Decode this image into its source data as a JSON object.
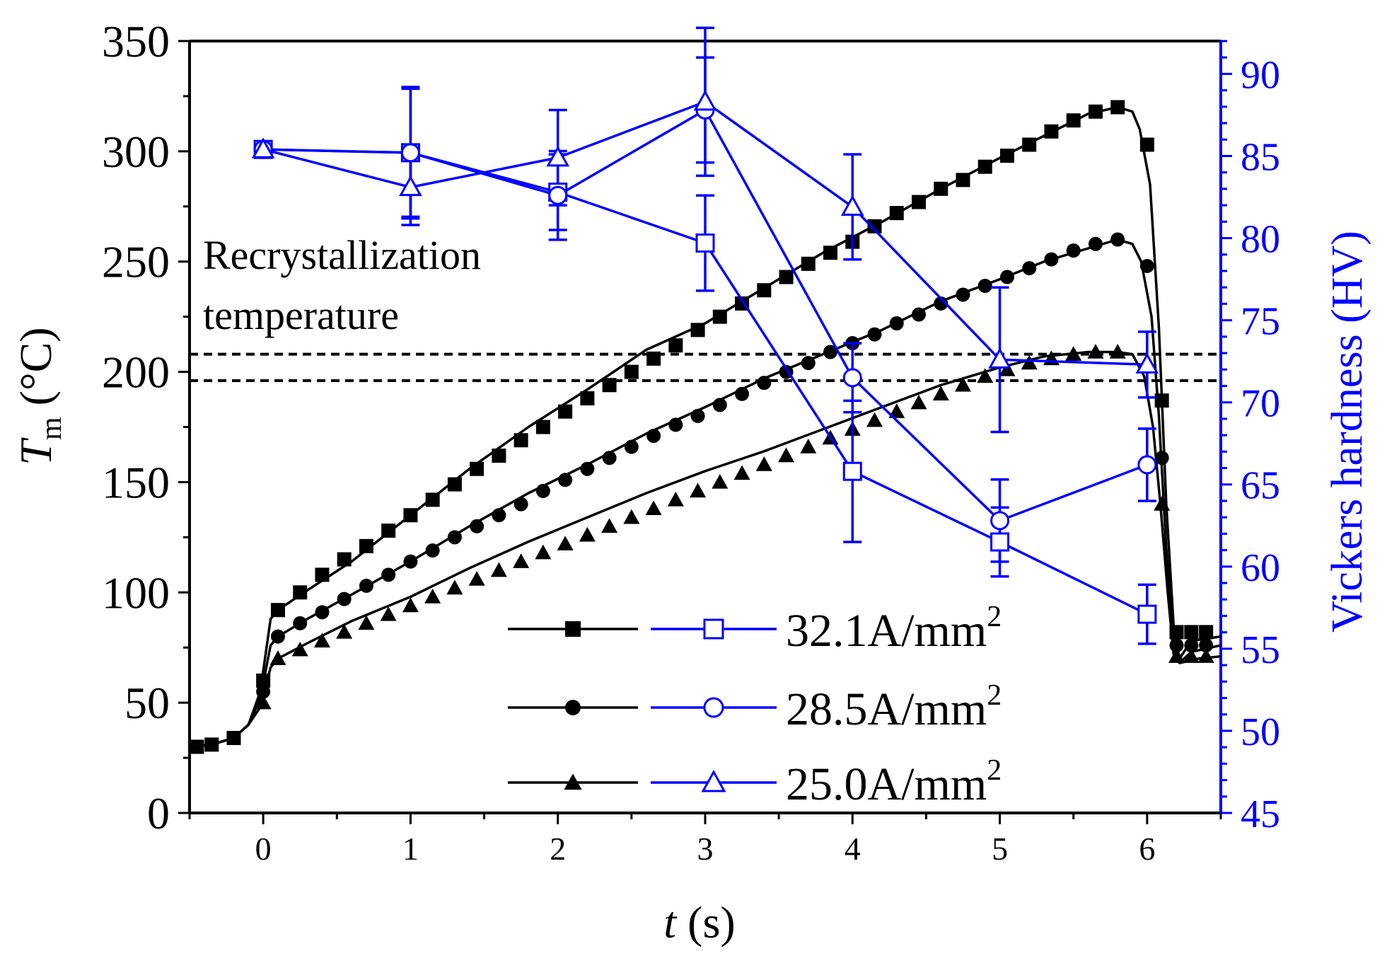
{
  "colors": {
    "temp": "#000000",
    "hard": "#0000ff",
    "threshold": "#000000"
  },
  "chart_data": {
    "type": "line",
    "x_axis": {
      "label_italic": "t",
      "label_unit": "(s)",
      "range": [
        -0.5,
        6.5
      ],
      "ticks": [
        0,
        1,
        2,
        3,
        4,
        5,
        6
      ]
    },
    "y_left": {
      "label_italic": "T",
      "label_sub": "m",
      "label_unit": "(°C)",
      "range": [
        0,
        350
      ],
      "ticks": [
        0,
        50,
        100,
        150,
        200,
        250,
        300,
        350
      ]
    },
    "y_right": {
      "label": "Vickers hardness (HV)",
      "range": [
        45,
        92
      ],
      "ticks": [
        45,
        50,
        55,
        60,
        65,
        70,
        75,
        80,
        85,
        90
      ]
    },
    "annotation": {
      "line1": "Recrystallization",
      "line2": "temperature"
    },
    "threshold_lines": [
      208,
      196
    ],
    "temperature_series": [
      {
        "name": "32.1A/mm2",
        "marker": "square",
        "curve": [
          [
            -0.5,
            30
          ],
          [
            -0.35,
            31
          ],
          [
            -0.2,
            34
          ],
          [
            -0.1,
            40
          ],
          [
            -0.02,
            55
          ],
          [
            0.05,
            88
          ],
          [
            0.1,
            92
          ],
          [
            0.3,
            101
          ],
          [
            0.6,
            114
          ],
          [
            1,
            135
          ],
          [
            1.4,
            156
          ],
          [
            1.8,
            175
          ],
          [
            2.2,
            192
          ],
          [
            2.6,
            210
          ],
          [
            3,
            222
          ],
          [
            3.4,
            238
          ],
          [
            3.8,
            254
          ],
          [
            4.2,
            268
          ],
          [
            4.6,
            283
          ],
          [
            5,
            297
          ],
          [
            5.3,
            307
          ],
          [
            5.6,
            317
          ],
          [
            5.8,
            320
          ],
          [
            5.9,
            318
          ],
          [
            5.95,
            310
          ],
          [
            6.02,
            285
          ],
          [
            6.08,
            220
          ],
          [
            6.13,
            140
          ],
          [
            6.18,
            85
          ],
          [
            6.22,
            70
          ],
          [
            6.3,
            78
          ],
          [
            6.5,
            80
          ]
        ],
        "markers": [
          [
            -0.45,
            30
          ],
          [
            -0.35,
            31
          ],
          [
            -0.2,
            34
          ],
          [
            0.0,
            60
          ],
          [
            0.1,
            92
          ],
          [
            0.25,
            100
          ],
          [
            0.4,
            108
          ],
          [
            0.55,
            115
          ],
          [
            0.7,
            121
          ],
          [
            0.85,
            128
          ],
          [
            1.0,
            135
          ],
          [
            1.15,
            142
          ],
          [
            1.3,
            149
          ],
          [
            1.45,
            156
          ],
          [
            1.6,
            162
          ],
          [
            1.75,
            169
          ],
          [
            1.9,
            175
          ],
          [
            2.05,
            182
          ],
          [
            2.2,
            188
          ],
          [
            2.35,
            194
          ],
          [
            2.5,
            200
          ],
          [
            2.65,
            206
          ],
          [
            2.8,
            212
          ],
          [
            2.95,
            219
          ],
          [
            3.1,
            225
          ],
          [
            3.25,
            231
          ],
          [
            3.4,
            237
          ],
          [
            3.55,
            243
          ],
          [
            3.7,
            249
          ],
          [
            3.85,
            254
          ],
          [
            4.0,
            259
          ],
          [
            4.15,
            266
          ],
          [
            4.3,
            272
          ],
          [
            4.45,
            277
          ],
          [
            4.6,
            283
          ],
          [
            4.75,
            287
          ],
          [
            4.9,
            293
          ],
          [
            5.05,
            298
          ],
          [
            5.2,
            303
          ],
          [
            5.35,
            309
          ],
          [
            5.5,
            314
          ],
          [
            5.65,
            318
          ],
          [
            5.8,
            320
          ],
          [
            6.0,
            303
          ],
          [
            6.1,
            187
          ],
          [
            6.2,
            82
          ],
          [
            6.3,
            82
          ],
          [
            6.4,
            82
          ]
        ]
      },
      {
        "name": "28.5A/mm2",
        "marker": "circle",
        "curve": [
          [
            -0.5,
            30
          ],
          [
            -0.35,
            31
          ],
          [
            -0.2,
            34
          ],
          [
            -0.1,
            40
          ],
          [
            -0.02,
            52
          ],
          [
            0.05,
            76
          ],
          [
            0.1,
            80
          ],
          [
            0.3,
            88
          ],
          [
            0.6,
            99
          ],
          [
            1,
            114
          ],
          [
            1.4,
            130
          ],
          [
            1.8,
            145
          ],
          [
            2.2,
            158
          ],
          [
            2.6,
            172
          ],
          [
            3,
            184
          ],
          [
            3.4,
            197
          ],
          [
            3.8,
            208
          ],
          [
            4.2,
            219
          ],
          [
            4.6,
            232
          ],
          [
            5,
            242
          ],
          [
            5.3,
            250
          ],
          [
            5.6,
            256
          ],
          [
            5.8,
            260
          ],
          [
            5.9,
            258
          ],
          [
            5.96,
            250
          ],
          [
            6.03,
            225
          ],
          [
            6.08,
            180
          ],
          [
            6.13,
            120
          ],
          [
            6.18,
            78
          ],
          [
            6.22,
            68
          ],
          [
            6.3,
            73
          ],
          [
            6.5,
            76
          ]
        ],
        "markers": [
          [
            0.0,
            55
          ],
          [
            0.1,
            80
          ],
          [
            0.25,
            86
          ],
          [
            0.4,
            91
          ],
          [
            0.55,
            97
          ],
          [
            0.7,
            103
          ],
          [
            0.85,
            108
          ],
          [
            1.0,
            114
          ],
          [
            1.15,
            119
          ],
          [
            1.3,
            125
          ],
          [
            1.45,
            130
          ],
          [
            1.6,
            135
          ],
          [
            1.75,
            140
          ],
          [
            1.9,
            146
          ],
          [
            2.05,
            151
          ],
          [
            2.2,
            156
          ],
          [
            2.35,
            161
          ],
          [
            2.5,
            166
          ],
          [
            2.65,
            171
          ],
          [
            2.8,
            176
          ],
          [
            2.95,
            180
          ],
          [
            3.1,
            185
          ],
          [
            3.25,
            190
          ],
          [
            3.4,
            195
          ],
          [
            3.55,
            200
          ],
          [
            3.7,
            204
          ],
          [
            3.85,
            209
          ],
          [
            4.0,
            213
          ],
          [
            4.15,
            217
          ],
          [
            4.3,
            222
          ],
          [
            4.45,
            226
          ],
          [
            4.6,
            231
          ],
          [
            4.75,
            235
          ],
          [
            4.9,
            239
          ],
          [
            5.05,
            243
          ],
          [
            5.2,
            247
          ],
          [
            5.35,
            251
          ],
          [
            5.5,
            255
          ],
          [
            5.65,
            258
          ],
          [
            5.8,
            260
          ],
          [
            6.0,
            248
          ],
          [
            6.1,
            161
          ],
          [
            6.2,
            76
          ],
          [
            6.3,
            76
          ],
          [
            6.4,
            76
          ]
        ]
      },
      {
        "name": "25.0A/mm2",
        "marker": "triangle",
        "curve": [
          [
            -0.5,
            30
          ],
          [
            -0.35,
            31
          ],
          [
            -0.2,
            34
          ],
          [
            -0.1,
            40
          ],
          [
            -0.02,
            48
          ],
          [
            0.05,
            66
          ],
          [
            0.1,
            70
          ],
          [
            0.3,
            77
          ],
          [
            0.6,
            87
          ],
          [
            1,
            98
          ],
          [
            1.4,
            111
          ],
          [
            1.8,
            123
          ],
          [
            2.2,
            134
          ],
          [
            2.6,
            145
          ],
          [
            3,
            155
          ],
          [
            3.4,
            164
          ],
          [
            3.8,
            174
          ],
          [
            4.2,
            184
          ],
          [
            4.6,
            194
          ],
          [
            5,
            202
          ],
          [
            5.3,
            207
          ],
          [
            5.6,
            209
          ],
          [
            5.8,
            209
          ],
          [
            5.9,
            208
          ],
          [
            5.98,
            198
          ],
          [
            6.04,
            175
          ],
          [
            6.09,
            140
          ],
          [
            6.14,
            100
          ],
          [
            6.18,
            72
          ],
          [
            6.22,
            68
          ],
          [
            6.35,
            70
          ],
          [
            6.5,
            71
          ]
        ],
        "markers": [
          [
            0.0,
            50
          ],
          [
            0.1,
            70
          ],
          [
            0.25,
            74
          ],
          [
            0.4,
            78
          ],
          [
            0.55,
            82
          ],
          [
            0.7,
            86
          ],
          [
            0.85,
            90
          ],
          [
            1.0,
            94
          ],
          [
            1.15,
            98
          ],
          [
            1.3,
            102
          ],
          [
            1.45,
            106
          ],
          [
            1.6,
            110
          ],
          [
            1.75,
            114
          ],
          [
            1.9,
            118
          ],
          [
            2.05,
            122
          ],
          [
            2.2,
            126
          ],
          [
            2.35,
            130
          ],
          [
            2.5,
            134
          ],
          [
            2.65,
            138
          ],
          [
            2.8,
            142
          ],
          [
            2.95,
            146
          ],
          [
            3.1,
            150
          ],
          [
            3.25,
            154
          ],
          [
            3.4,
            158
          ],
          [
            3.55,
            162
          ],
          [
            3.7,
            166
          ],
          [
            3.85,
            170
          ],
          [
            4.0,
            174
          ],
          [
            4.15,
            178
          ],
          [
            4.3,
            182
          ],
          [
            4.45,
            186
          ],
          [
            4.6,
            190
          ],
          [
            4.75,
            194
          ],
          [
            4.9,
            198
          ],
          [
            5.05,
            201
          ],
          [
            5.2,
            204
          ],
          [
            5.35,
            206
          ],
          [
            5.5,
            208
          ],
          [
            5.65,
            209
          ],
          [
            5.8,
            209
          ],
          [
            6.0,
            203
          ],
          [
            6.1,
            140
          ],
          [
            6.2,
            71
          ],
          [
            6.3,
            71
          ],
          [
            6.4,
            71
          ]
        ]
      }
    ],
    "hardness_series": [
      {
        "name": "32.1A/mm2",
        "marker": "open-square",
        "x": [
          0,
          1,
          2,
          3,
          4,
          5,
          6
        ],
        "y": [
          85.4,
          85.2,
          82.8,
          79.7,
          65.8,
          61.5,
          57.1
        ],
        "err": [
          0.3,
          4.0,
          2.3,
          2.9,
          4.3,
          2.1,
          1.8
        ]
      },
      {
        "name": "28.5A/mm2",
        "marker": "open-circle",
        "x": [
          0,
          1,
          2,
          3,
          4,
          5,
          6
        ],
        "y": [
          85.4,
          85.2,
          82.6,
          87.8,
          71.5,
          62.8,
          66.2
        ],
        "err": [
          0.3,
          3.9,
          2.7,
          3.2,
          2.1,
          2.5,
          2.2
        ]
      },
      {
        "name": "25.0A/mm2",
        "marker": "open-triangle",
        "x": [
          0,
          1,
          2,
          3,
          4,
          5,
          6
        ],
        "y": [
          85.4,
          83.1,
          84.9,
          88.3,
          81.9,
          72.6,
          72.3
        ],
        "err": [
          0.3,
          2.3,
          2.9,
          4.5,
          3.2,
          4.4,
          2.0
        ]
      }
    ],
    "legend": [
      {
        "label_main": "32.1A/mm",
        "label_sup": "2"
      },
      {
        "label_main": "28.5A/mm",
        "label_sup": "2"
      },
      {
        "label_main": "25.0A/mm",
        "label_sup": "2"
      }
    ],
    "legend_position": "bottom-right"
  }
}
